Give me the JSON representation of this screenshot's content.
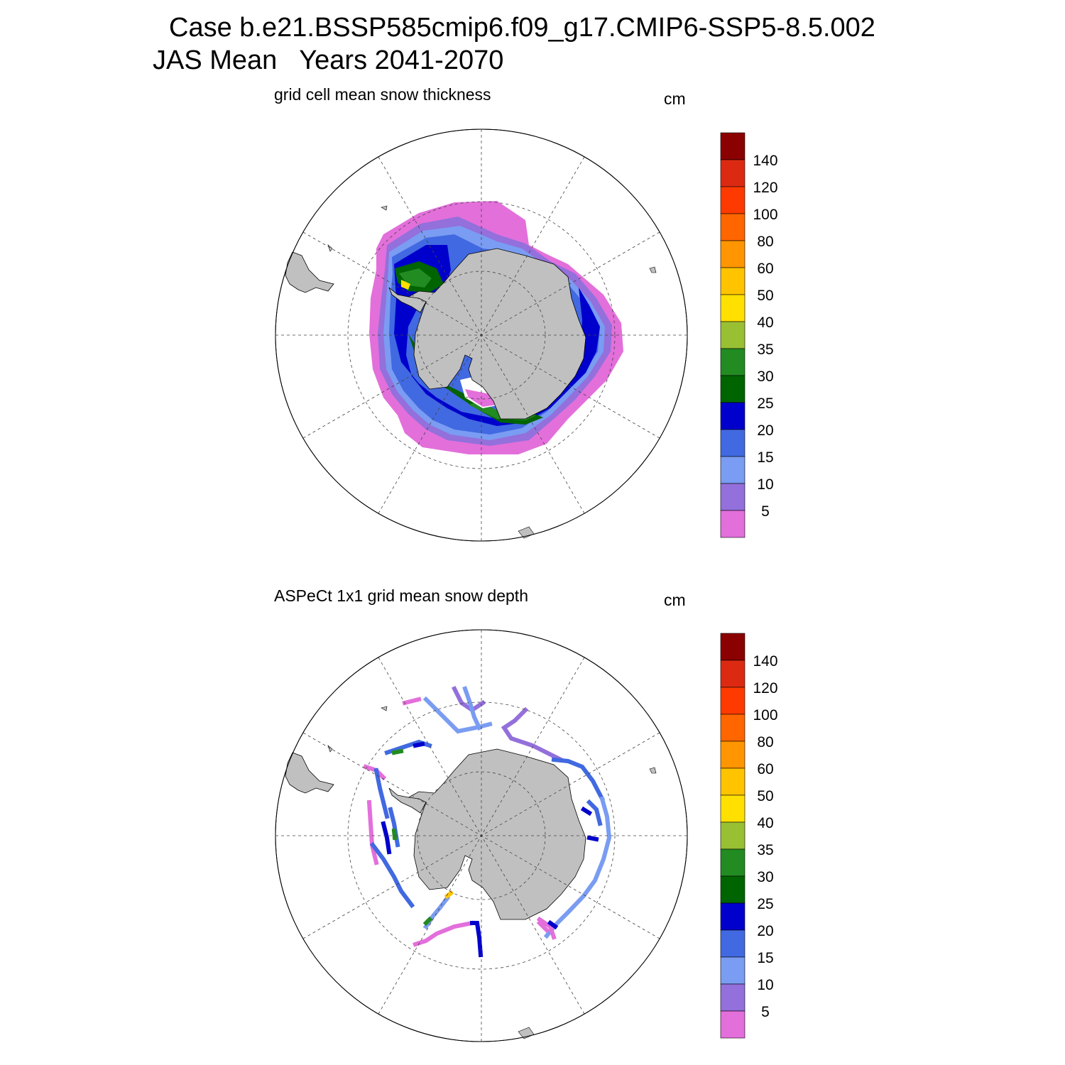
{
  "header": {
    "case_line": "Case b.e21.BSSP585cmip6.f09_g17.CMIP6-SSP5-8.5.002",
    "period_line": "JAS Mean   Years 2041-2070"
  },
  "panels": [
    {
      "subtitle": "grid cell mean snow thickness",
      "unit": "cm"
    },
    {
      "subtitle": "ASPeCt 1x1 grid mean snow depth",
      "unit": "cm"
    }
  ],
  "colorbar": {
    "labels": [
      "140",
      "120",
      "100",
      "80",
      "60",
      "50",
      "40",
      "35",
      "30",
      "25",
      "20",
      "15",
      "10",
      "5"
    ],
    "colors": [
      "#8b0000",
      "#dc2a12",
      "#ff3a00",
      "#ff6600",
      "#ff9500",
      "#ffc300",
      "#ffe000",
      "#99bf33",
      "#228b22",
      "#006400",
      "#0000cd",
      "#4169e1",
      "#7a9cf2",
      "#9370db",
      "#e36fdb"
    ]
  },
  "map_colors": {
    "land": "#c0c0c0",
    "ocean": "#ffffff"
  }
}
